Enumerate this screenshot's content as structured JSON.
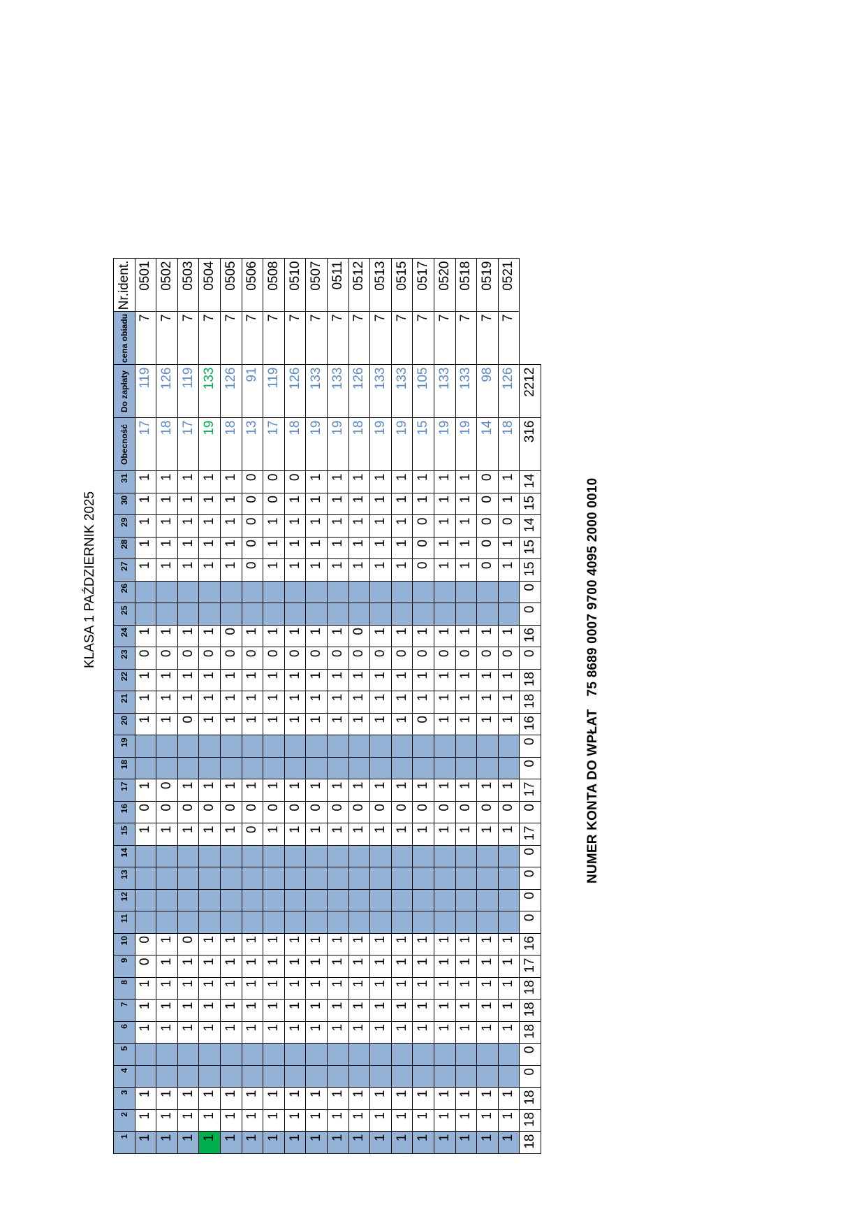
{
  "title": "KLASA 1 PAŹDZIERNIK 2025",
  "account": {
    "label": "NUMER KONTA  DO WPŁAT",
    "number": "75 8689 0007 9700 4095 2000 0010"
  },
  "columns": {
    "days": [
      "1",
      "2",
      "3",
      "4",
      "5",
      "6",
      "7",
      "8",
      "9",
      "10",
      "11",
      "12",
      "13",
      "14",
      "15",
      "16",
      "17",
      "18",
      "19",
      "20",
      "21",
      "22",
      "23",
      "24",
      "25",
      "26",
      "27",
      "28",
      "29",
      "30",
      "31"
    ],
    "obecnosc": "Obecność",
    "do_zaplaty": "Do zapłaty",
    "cena_obiadu": "cena obiadu",
    "nr_ident": "Nr.ident."
  },
  "blue_days": [
    1,
    4,
    5,
    11,
    12,
    13,
    14,
    18,
    19,
    25,
    26
  ],
  "colors": {
    "header_blue": "#95b3d7",
    "present_green": "#00b050",
    "value_blue": "#5b8ac6"
  },
  "rows": [
    {
      "days": [
        "1",
        "1",
        "1",
        "",
        "",
        "1",
        "1",
        "1",
        "0",
        "0",
        "",
        "",
        "",
        "",
        "1",
        "0",
        "1",
        "",
        "",
        "1",
        "1",
        "1",
        "0",
        "1",
        "",
        "",
        "1",
        "1",
        "1",
        "1",
        "1"
      ],
      "obecnosc": "17",
      "do_zaplaty": "119",
      "cena": "7",
      "nr": "0501"
    },
    {
      "days": [
        "1",
        "1",
        "1",
        "",
        "",
        "1",
        "1",
        "1",
        "1",
        "1",
        "",
        "",
        "",
        "",
        "1",
        "0",
        "0",
        "",
        "",
        "1",
        "1",
        "1",
        "0",
        "1",
        "",
        "",
        "1",
        "1",
        "1",
        "1",
        "1"
      ],
      "obecnosc": "18",
      "do_zaplaty": "126",
      "cena": "7",
      "nr": "0502"
    },
    {
      "days": [
        "1",
        "1",
        "1",
        "",
        "",
        "1",
        "1",
        "1",
        "1",
        "0",
        "",
        "",
        "",
        "",
        "1",
        "0",
        "1",
        "",
        "",
        "0",
        "1",
        "1",
        "0",
        "1",
        "",
        "",
        "1",
        "1",
        "1",
        "1",
        "1"
      ],
      "obecnosc": "17",
      "do_zaplaty": "119",
      "cena": "7",
      "nr": "0503"
    },
    {
      "days": [
        "1",
        "1",
        "1",
        "",
        "",
        "1",
        "1",
        "1",
        "1",
        "1",
        "",
        "",
        "",
        "",
        "1",
        "0",
        "1",
        "",
        "",
        "1",
        "1",
        "1",
        "0",
        "1",
        "",
        "",
        "1",
        "1",
        "1",
        "1",
        "1"
      ],
      "obecnosc": "19",
      "do_zaplaty": "133",
      "cena": "7",
      "nr": "0504",
      "highlight": true
    },
    {
      "days": [
        "1",
        "1",
        "1",
        "",
        "",
        "1",
        "1",
        "1",
        "1",
        "1",
        "",
        "",
        "",
        "",
        "1",
        "0",
        "1",
        "",
        "",
        "1",
        "1",
        "1",
        "0",
        "0",
        "",
        "",
        "1",
        "1",
        "1",
        "1",
        "1"
      ],
      "obecnosc": "18",
      "do_zaplaty": "126",
      "cena": "7",
      "nr": "0505"
    },
    {
      "days": [
        "1",
        "1",
        "1",
        "",
        "",
        "1",
        "1",
        "1",
        "1",
        "1",
        "",
        "",
        "",
        "",
        "0",
        "0",
        "1",
        "",
        "",
        "1",
        "1",
        "1",
        "0",
        "1",
        "",
        "",
        "0",
        "0",
        "0",
        "0",
        "0"
      ],
      "obecnosc": "13",
      "do_zaplaty": "91",
      "cena": "7",
      "nr": "0506"
    },
    {
      "days": [
        "1",
        "1",
        "1",
        "",
        "",
        "1",
        "1",
        "1",
        "1",
        "1",
        "",
        "",
        "",
        "",
        "1",
        "0",
        "1",
        "",
        "",
        "1",
        "1",
        "1",
        "0",
        "1",
        "",
        "",
        "1",
        "1",
        "1",
        "0",
        "0"
      ],
      "obecnosc": "17",
      "do_zaplaty": "119",
      "cena": "7",
      "nr": "0508"
    },
    {
      "days": [
        "1",
        "1",
        "1",
        "",
        "",
        "1",
        "1",
        "1",
        "1",
        "1",
        "",
        "",
        "",
        "",
        "1",
        "0",
        "1",
        "",
        "",
        "1",
        "1",
        "1",
        "0",
        "1",
        "",
        "",
        "1",
        "1",
        "1",
        "1",
        "0"
      ],
      "obecnosc": "18",
      "do_zaplaty": "126",
      "cena": "7",
      "nr": "0510"
    },
    {
      "days": [
        "1",
        "1",
        "1",
        "",
        "",
        "1",
        "1",
        "1",
        "1",
        "1",
        "",
        "",
        "",
        "",
        "1",
        "0",
        "1",
        "",
        "",
        "1",
        "1",
        "1",
        "0",
        "1",
        "",
        "",
        "1",
        "1",
        "1",
        "1",
        "1"
      ],
      "obecnosc": "19",
      "do_zaplaty": "133",
      "cena": "7",
      "nr": "0507"
    },
    {
      "days": [
        "1",
        "1",
        "1",
        "",
        "",
        "1",
        "1",
        "1",
        "1",
        "1",
        "",
        "",
        "",
        "",
        "1",
        "0",
        "1",
        "",
        "",
        "1",
        "1",
        "1",
        "0",
        "1",
        "",
        "",
        "1",
        "1",
        "1",
        "1",
        "1"
      ],
      "obecnosc": "19",
      "do_zaplaty": "133",
      "cena": "7",
      "nr": "0511"
    },
    {
      "days": [
        "1",
        "1",
        "1",
        "",
        "",
        "1",
        "1",
        "1",
        "1",
        "1",
        "",
        "",
        "",
        "",
        "1",
        "0",
        "1",
        "",
        "",
        "1",
        "1",
        "1",
        "0",
        "0",
        "",
        "",
        "1",
        "1",
        "1",
        "1",
        "1"
      ],
      "obecnosc": "18",
      "do_zaplaty": "126",
      "cena": "7",
      "nr": "0512"
    },
    {
      "days": [
        "1",
        "1",
        "1",
        "",
        "",
        "1",
        "1",
        "1",
        "1",
        "1",
        "",
        "",
        "",
        "",
        "1",
        "0",
        "1",
        "",
        "",
        "1",
        "1",
        "1",
        "0",
        "1",
        "",
        "",
        "1",
        "1",
        "1",
        "1",
        "1"
      ],
      "obecnosc": "19",
      "do_zaplaty": "133",
      "cena": "7",
      "nr": "0513"
    },
    {
      "days": [
        "1",
        "1",
        "1",
        "",
        "",
        "1",
        "1",
        "1",
        "1",
        "1",
        "",
        "",
        "",
        "",
        "1",
        "0",
        "1",
        "",
        "",
        "1",
        "1",
        "1",
        "0",
        "1",
        "",
        "",
        "1",
        "1",
        "1",
        "1",
        "1"
      ],
      "obecnosc": "19",
      "do_zaplaty": "133",
      "cena": "7",
      "nr": "0515"
    },
    {
      "days": [
        "1",
        "1",
        "1",
        "",
        "",
        "1",
        "1",
        "1",
        "1",
        "1",
        "",
        "",
        "",
        "",
        "1",
        "0",
        "1",
        "",
        "",
        "0",
        "1",
        "1",
        "0",
        "1",
        "",
        "",
        "0",
        "0",
        "0",
        "1",
        "1"
      ],
      "obecnosc": "15",
      "do_zaplaty": "105",
      "cena": "7",
      "nr": "0517"
    },
    {
      "days": [
        "1",
        "1",
        "1",
        "",
        "",
        "1",
        "1",
        "1",
        "1",
        "1",
        "",
        "",
        "",
        "",
        "1",
        "0",
        "1",
        "",
        "",
        "1",
        "1",
        "1",
        "0",
        "1",
        "",
        "",
        "1",
        "1",
        "1",
        "1",
        "1"
      ],
      "obecnosc": "19",
      "do_zaplaty": "133",
      "cena": "7",
      "nr": "0520"
    },
    {
      "days": [
        "1",
        "1",
        "1",
        "",
        "",
        "1",
        "1",
        "1",
        "1",
        "1",
        "",
        "",
        "",
        "",
        "1",
        "0",
        "1",
        "",
        "",
        "1",
        "1",
        "1",
        "0",
        "1",
        "",
        "",
        "1",
        "1",
        "1",
        "1",
        "1"
      ],
      "obecnosc": "19",
      "do_zaplaty": "133",
      "cena": "7",
      "nr": "0518"
    },
    {
      "days": [
        "1",
        "1",
        "1",
        "",
        "",
        "1",
        "1",
        "1",
        "1",
        "1",
        "",
        "",
        "",
        "",
        "1",
        "0",
        "1",
        "",
        "",
        "1",
        "1",
        "1",
        "0",
        "1",
        "",
        "",
        "0",
        "0",
        "0",
        "0",
        "0"
      ],
      "obecnosc": "14",
      "do_zaplaty": "98",
      "cena": "7",
      "nr": "0519"
    },
    {
      "days": [
        "1",
        "1",
        "1",
        "",
        "",
        "1",
        "1",
        "1",
        "1",
        "1",
        "",
        "",
        "",
        "",
        "1",
        "0",
        "1",
        "",
        "",
        "1",
        "1",
        "1",
        "0",
        "1",
        "",
        "",
        "1",
        "1",
        "0",
        "1",
        "1"
      ],
      "obecnosc": "18",
      "do_zaplaty": "126",
      "cena": "7",
      "nr": "0521"
    }
  ],
  "totals": {
    "days": [
      "18",
      "18",
      "18",
      "0",
      "0",
      "18",
      "18",
      "18",
      "17",
      "16",
      "0",
      "0",
      "0",
      "0",
      "17",
      "0",
      "17",
      "0",
      "0",
      "16",
      "18",
      "18",
      "0",
      "16",
      "0",
      "0",
      "15",
      "15",
      "14",
      "15",
      "14"
    ],
    "obecnosc": "316",
    "do_zaplaty": "2212"
  }
}
